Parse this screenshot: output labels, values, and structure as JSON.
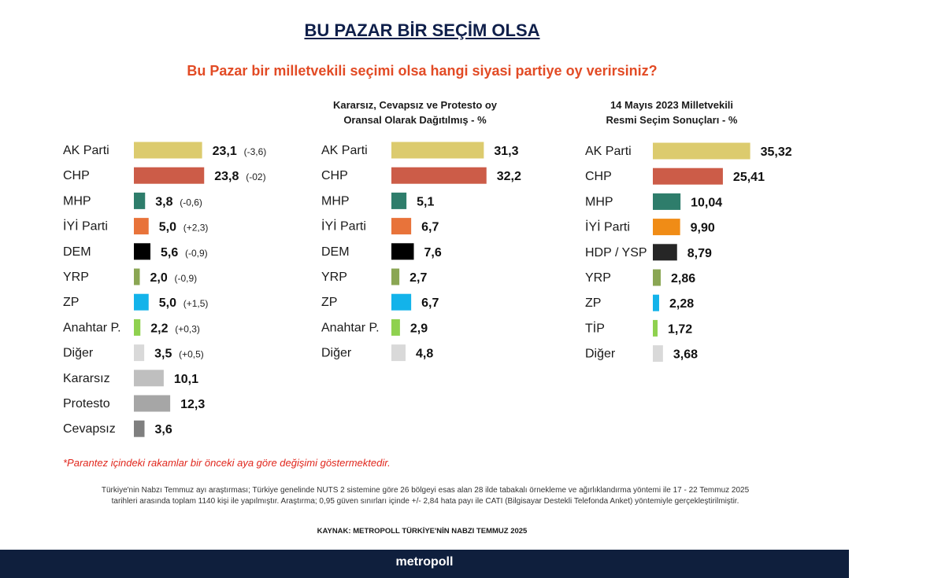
{
  "header": {
    "title": "BU PAZAR BİR SEÇİM OLSA",
    "subtitle": "Bu Pazar bir milletvekili seçimi olsa hangi siyasi partiye oy verirsiniz?"
  },
  "panels": {
    "p2_title_line1": "Kararsız, Cevapsız ve Protesto oy",
    "p2_title_line2": "Oransal Olarak Dağıtılmış - %",
    "p3_title_line1": "14 Mayıs 2023 Milletvekili",
    "p3_title_line2": "Resmi Seçim Sonuçları - %"
  },
  "chart_data": [
    {
      "type": "bar",
      "orientation": "horizontal",
      "title": "",
      "categories": [
        "AK Parti",
        "CHP",
        "MHP",
        "İYİ Parti",
        "DEM",
        "YRP",
        "ZP",
        "Anahtar P.",
        "Diğer",
        "Kararsız",
        "Protesto",
        "Cevapsız"
      ],
      "values": [
        23.1,
        23.8,
        3.8,
        5.0,
        5.6,
        2.0,
        5.0,
        2.2,
        3.5,
        10.1,
        12.3,
        3.6
      ],
      "value_labels": [
        "23,1",
        "23,8",
        "3,8",
        "5,0",
        "5,6",
        "2,0",
        "5,0",
        "2,2",
        "3,5",
        "10,1",
        "12,3",
        "3,6"
      ],
      "change_labels": [
        "(-3,6)",
        "(-02)",
        "(-0,6)",
        "(+2,3)",
        "(-0,9)",
        "(-0,9)",
        "(+1,5)",
        "(+0,3)",
        "(+0,5)",
        "",
        "",
        ""
      ],
      "colors": [
        "#dccb6e",
        "#cc5c48",
        "#2e7d6b",
        "#e8733a",
        "#000000",
        "#8aa653",
        "#13b3ea",
        "#8fd14f",
        "#d9d9d9",
        "#bfbfbf",
        "#a6a6a6",
        "#7f7f7f"
      ]
    },
    {
      "type": "bar",
      "orientation": "horizontal",
      "title": "Kararsız, Cevapsız ve Protesto oy Oransal Olarak Dağıtılmış - %",
      "categories": [
        "AK Parti",
        "CHP",
        "MHP",
        "İYİ Parti",
        "DEM",
        "YRP",
        "ZP",
        "Anahtar P.",
        "Diğer"
      ],
      "values": [
        31.3,
        32.2,
        5.1,
        6.7,
        7.6,
        2.7,
        6.7,
        2.9,
        4.8
      ],
      "value_labels": [
        "31,3",
        "32,2",
        "5,1",
        "6,7",
        "7,6",
        "2,7",
        "6,7",
        "2,9",
        "4,8"
      ],
      "colors": [
        "#dccb6e",
        "#cc5c48",
        "#2e7d6b",
        "#e8733a",
        "#000000",
        "#8aa653",
        "#13b3ea",
        "#8fd14f",
        "#d9d9d9"
      ]
    },
    {
      "type": "bar",
      "orientation": "horizontal",
      "title": "14 Mayıs 2023 Milletvekili Resmi Seçim Sonuçları - %",
      "categories": [
        "AK Parti",
        "CHP",
        "MHP",
        "İYİ Parti",
        "HDP / YSP",
        "YRP",
        "ZP",
        "TİP",
        "Diğer"
      ],
      "values": [
        35.32,
        25.41,
        10.04,
        9.9,
        8.79,
        2.86,
        2.28,
        1.72,
        3.68
      ],
      "value_labels": [
        "35,32",
        "25,41",
        "10,04",
        "9,90",
        "8,79",
        "2,86",
        "2,28",
        "1,72",
        "3,68"
      ],
      "colors": [
        "#dccb6e",
        "#cc5c48",
        "#2e7d6b",
        "#f08c16",
        "#262626",
        "#8aa653",
        "#13b3ea",
        "#8fd14f",
        "#d9d9d9"
      ]
    }
  ],
  "notes": {
    "footnote": "*Parantez içindeki rakamlar bir önceki aya göre değişimi göstermektedir.",
    "method_line1": "Türkiye'nin Nabzı Temmuz ayı araştırması; Türkiye genelinde NUTS 2 sistemine göre 26 bölgeyi esas alan 28 ilde tabakalı örnekleme ve ağırlıklandırma yöntemi ile 17 - 22 Temmuz 2025",
    "method_line2": "tarihleri arasında toplam 1140 kişi ile yapılmıştır. Araştırma; 0,95 güven sınırları içinde +/- 2,84 hata payı ile CATI (Bilgisayar Destekli Telefonda Anket) yöntemiyle gerçekleştirilmiştir.",
    "source": "KAYNAK: METROPOLL TÜRKİYE'NİN NABZI TEMMUZ 2025"
  },
  "footer": {
    "logo": "metropoll"
  }
}
